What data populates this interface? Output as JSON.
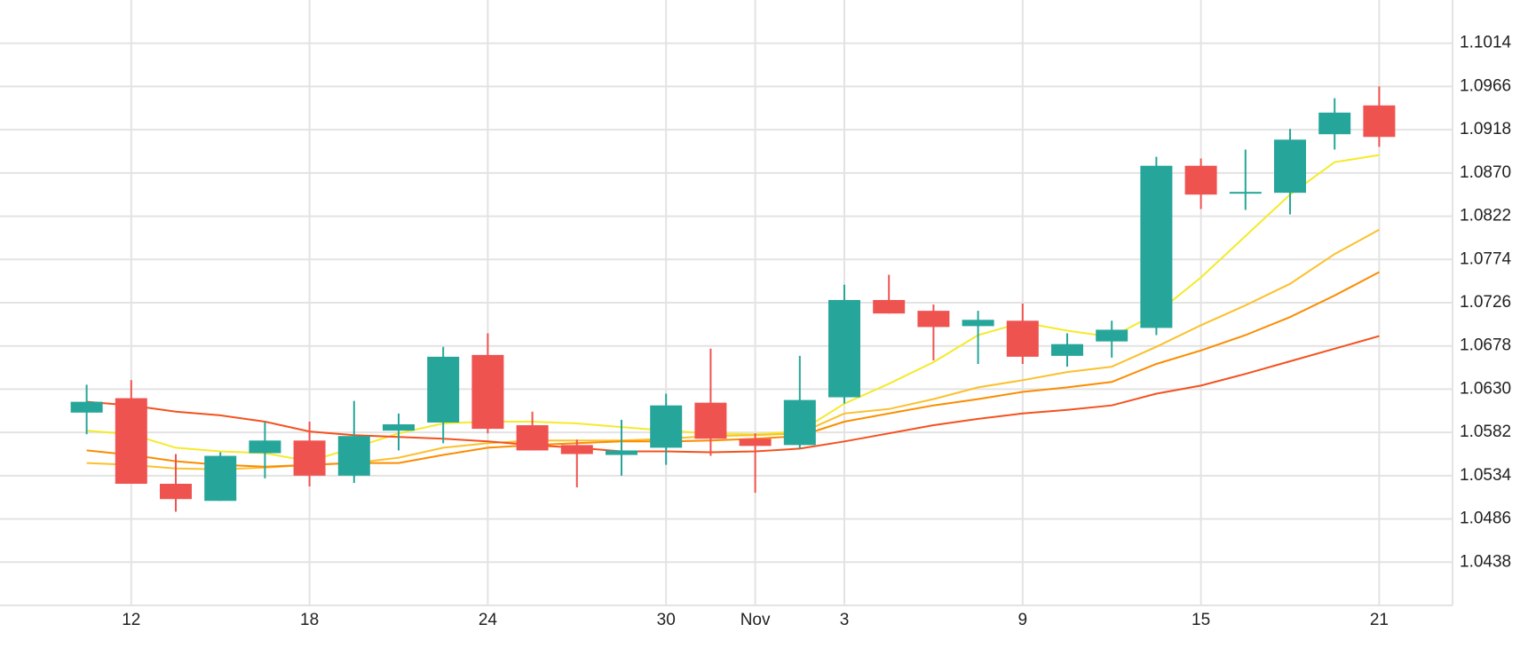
{
  "chart_data": {
    "type": "candlestick",
    "categories": [
      null,
      "12",
      null,
      null,
      null,
      "18",
      null,
      null,
      null,
      "24",
      null,
      null,
      null,
      "30",
      null,
      "Nov",
      null,
      "3",
      null,
      null,
      null,
      "9",
      null,
      null,
      null,
      "15",
      null,
      null,
      null,
      "21"
    ],
    "open": [
      1.0604,
      1.062,
      1.0525,
      1.0506,
      1.0559,
      1.0573,
      1.0534,
      1.0584,
      1.0593,
      1.0668,
      1.059,
      1.0568,
      1.0557,
      1.0565,
      1.0615,
      1.0575,
      1.0568,
      1.0621,
      1.0729,
      1.0717,
      1.07,
      1.0706,
      1.0667,
      1.0683,
      1.0698,
      1.0878,
      1.0847,
      1.0848,
      1.0913,
      1.0945
    ],
    "high": [
      1.0635,
      1.064,
      1.0558,
      1.056,
      1.0594,
      1.0594,
      1.0617,
      1.0603,
      1.0677,
      1.0692,
      1.0605,
      1.0574,
      1.0596,
      1.0625,
      1.0675,
      1.0581,
      1.0667,
      1.0746,
      1.0757,
      1.0724,
      1.0717,
      1.0725,
      1.0692,
      1.0706,
      1.0888,
      1.0886,
      1.0896,
      1.0919,
      1.0953,
      1.0966
    ],
    "low": [
      1.058,
      1.0525,
      1.0494,
      1.0506,
      1.0531,
      1.0522,
      1.0526,
      1.0562,
      1.057,
      1.0581,
      1.0562,
      1.0521,
      1.0534,
      1.0546,
      1.0556,
      1.0515,
      1.0564,
      1.0614,
      1.0714,
      1.0662,
      1.0658,
      1.0658,
      1.0655,
      1.0665,
      1.069,
      1.083,
      1.0829,
      1.0824,
      1.0896,
      1.0899
    ],
    "close": [
      1.0616,
      1.0525,
      1.0508,
      1.0556,
      1.0573,
      1.0534,
      1.0578,
      1.0591,
      1.0666,
      1.0586,
      1.0562,
      1.0558,
      1.0562,
      1.0612,
      1.0575,
      1.0567,
      1.0618,
      1.0729,
      1.0714,
      1.0699,
      1.0707,
      1.0666,
      1.068,
      1.0696,
      1.0878,
      1.0846,
      1.0849,
      1.0907,
      1.0937,
      1.091
    ],
    "up_color": "#26a69a",
    "down_color": "#ef5350",
    "lines": [
      {
        "color": "#f5ea2a",
        "values": [
          1.0584,
          1.058,
          1.0565,
          1.0561,
          1.0559,
          1.055,
          1.0565,
          1.0581,
          1.0592,
          1.0594,
          1.0594,
          1.0592,
          1.0588,
          1.0584,
          1.0581,
          1.058,
          1.0583,
          1.0614,
          1.0636,
          1.066,
          1.069,
          1.0704,
          1.0695,
          1.0688,
          1.0714,
          1.0754,
          1.08,
          1.0846,
          1.0882,
          1.089
        ]
      },
      {
        "color": "#fbc02d",
        "values": [
          1.0548,
          1.0546,
          1.0542,
          1.0541,
          1.0543,
          1.0546,
          1.0548,
          1.0554,
          1.0565,
          1.057,
          1.0573,
          1.0573,
          1.0573,
          1.0575,
          1.0578,
          1.0579,
          1.0581,
          1.0603,
          1.0608,
          1.0619,
          1.0632,
          1.064,
          1.0649,
          1.0655,
          1.0677,
          1.0701,
          1.0723,
          1.0747,
          1.078,
          1.0807
        ]
      },
      {
        "color": "#fb8c00",
        "values": [
          1.0562,
          1.0557,
          1.055,
          1.0546,
          1.0544,
          1.0546,
          1.0548,
          1.0548,
          1.0557,
          1.0565,
          1.0568,
          1.057,
          1.0572,
          1.0572,
          1.0573,
          1.0575,
          1.0578,
          1.0594,
          1.0603,
          1.0612,
          1.0619,
          1.0627,
          1.0632,
          1.0638,
          1.0658,
          1.0673,
          1.069,
          1.071,
          1.0734,
          1.076
        ]
      },
      {
        "color": "#f4511e",
        "values": [
          1.0616,
          1.0612,
          1.0605,
          1.0601,
          1.0594,
          1.0583,
          1.0579,
          1.0577,
          1.0575,
          1.0572,
          1.0568,
          1.0565,
          1.0561,
          1.0561,
          1.056,
          1.0561,
          1.0564,
          1.0572,
          1.0581,
          1.059,
          1.0597,
          1.0603,
          1.0607,
          1.0612,
          1.0625,
          1.0634,
          1.0647,
          1.0661,
          1.0675,
          1.0689
        ]
      }
    ],
    "ylim": [
      1.039,
      1.1062
    ],
    "yticks": [
      1.0438,
      1.0486,
      1.0534,
      1.0582,
      {
        "value": 1.063,
        "label": "1.0630"
      },
      1.0678,
      1.0726,
      1.0774,
      1.0822,
      {
        "value": 1.087,
        "label": "1.0870"
      },
      1.0918,
      1.0966,
      1.1014
    ],
    "grid": true
  }
}
